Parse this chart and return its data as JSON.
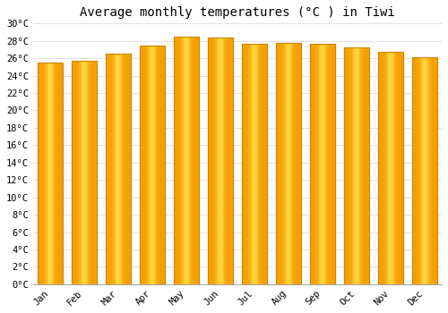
{
  "title": "Average monthly temperatures (°C ) in Tiwi",
  "months": [
    "Jan",
    "Feb",
    "Mar",
    "Apr",
    "May",
    "Jun",
    "Jul",
    "Aug",
    "Sep",
    "Oct",
    "Nov",
    "Dec"
  ],
  "values": [
    25.5,
    25.7,
    26.5,
    27.5,
    28.5,
    28.4,
    27.7,
    27.8,
    27.7,
    27.2,
    26.7,
    26.1
  ],
  "bar_color_center": "#FFD740",
  "bar_color_edge": "#F5A000",
  "bar_edge_color": "#CC8800",
  "ylim": [
    0,
    30
  ],
  "ytick_step": 2,
  "background_color": "#ffffff",
  "grid_color": "#dddddd",
  "title_fontsize": 10,
  "tick_fontsize": 7.5,
  "fig_width": 5.0,
  "fig_height": 3.5
}
